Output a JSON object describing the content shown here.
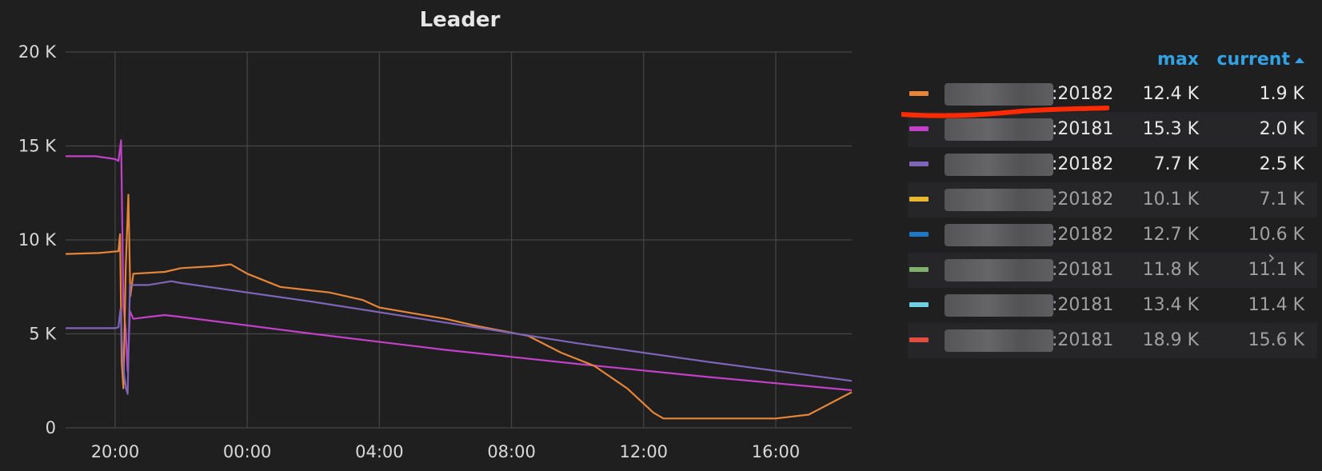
{
  "panel": {
    "title": "Leader"
  },
  "legend": {
    "headers": {
      "max": "max",
      "current": "current"
    },
    "rows": [
      {
        "name": ":20182",
        "max": "12.4 K",
        "current": "1.9 K",
        "color": "#e5853a"
      },
      {
        "name": ":20181",
        "max": "15.3 K",
        "current": "2.0 K",
        "color": "#c340c8"
      },
      {
        "name": ":20182",
        "max": "7.7 K",
        "current": "2.5 K",
        "color": "#7f64b8"
      },
      {
        "name": ":20182",
        "max": "10.1 K",
        "current": "7.1 K",
        "color": "#e8b930"
      },
      {
        "name": ":20182",
        "max": "12.7 K",
        "current": "10.6 K",
        "color": "#1f78c1"
      },
      {
        "name": ":20181",
        "max": "11.8 K",
        "current": "11.1 K",
        "color": "#7eb26d"
      },
      {
        "name": ":20181",
        "max": "13.4 K",
        "current": "11.4 K",
        "color": "#6ed0e0"
      },
      {
        "name": ":20181",
        "max": "18.9 K",
        "current": "15.6 K",
        "color": "#e24d42"
      }
    ]
  },
  "chart_data": {
    "type": "line",
    "title": "Leader",
    "y_ticks": [
      "0",
      "5 K",
      "10 K",
      "15 K",
      "20 K"
    ],
    "x_ticks": [
      "20:00",
      "00:00",
      "04:00",
      "08:00",
      "12:00",
      "16:00"
    ],
    "ylim": [
      0,
      20000
    ],
    "xlim_hours": [
      18.5,
      42.3
    ],
    "grid": true,
    "series": [
      {
        "color": "#c340c8",
        "points": [
          [
            18.5,
            14450
          ],
          [
            19.4,
            14450
          ],
          [
            20.0,
            14300
          ],
          [
            20.1,
            14200
          ],
          [
            20.18,
            15300
          ],
          [
            20.25,
            6500
          ],
          [
            20.32,
            5200
          ],
          [
            20.38,
            3000
          ],
          [
            20.45,
            6200
          ],
          [
            20.55,
            5800
          ],
          [
            21.0,
            5900
          ],
          [
            21.5,
            6000
          ],
          [
            22.0,
            5900
          ],
          [
            26.0,
            5000
          ],
          [
            30.0,
            4150
          ],
          [
            34.0,
            3400
          ],
          [
            38.0,
            2700
          ],
          [
            42.3,
            2000
          ]
        ]
      },
      {
        "color": "#e5853a",
        "points": [
          [
            18.5,
            9250
          ],
          [
            19.5,
            9300
          ],
          [
            20.1,
            9400
          ],
          [
            20.15,
            10300
          ],
          [
            20.2,
            3500
          ],
          [
            20.25,
            2100
          ],
          [
            20.32,
            8500
          ],
          [
            20.4,
            12400
          ],
          [
            20.46,
            7000
          ],
          [
            20.55,
            8200
          ],
          [
            21.5,
            8300
          ],
          [
            22.0,
            8500
          ],
          [
            23.0,
            8600
          ],
          [
            23.5,
            8700
          ],
          [
            24.0,
            8200
          ],
          [
            25.0,
            7500
          ],
          [
            26.5,
            7200
          ],
          [
            27.5,
            6800
          ],
          [
            28.0,
            6400
          ],
          [
            30.0,
            5800
          ],
          [
            31.0,
            5400
          ],
          [
            32.5,
            4900
          ],
          [
            33.5,
            4000
          ],
          [
            34.5,
            3300
          ],
          [
            35.5,
            2100
          ],
          [
            36.3,
            800
          ],
          [
            36.6,
            500
          ],
          [
            38.5,
            500
          ],
          [
            40.0,
            500
          ],
          [
            41.0,
            700
          ],
          [
            42.3,
            1900
          ]
        ]
      },
      {
        "color": "#7f64b8",
        "points": [
          [
            18.5,
            5300
          ],
          [
            20.0,
            5300
          ],
          [
            20.1,
            5350
          ],
          [
            20.16,
            6300
          ],
          [
            20.22,
            4000
          ],
          [
            20.28,
            2700
          ],
          [
            20.33,
            2100
          ],
          [
            20.38,
            1800
          ],
          [
            20.45,
            7600
          ],
          [
            21.0,
            7600
          ],
          [
            21.7,
            7800
          ],
          [
            22.0,
            7700
          ],
          [
            26.0,
            6700
          ],
          [
            30.0,
            5600
          ],
          [
            34.0,
            4500
          ],
          [
            38.0,
            3500
          ],
          [
            42.3,
            2500
          ]
        ]
      }
    ]
  }
}
